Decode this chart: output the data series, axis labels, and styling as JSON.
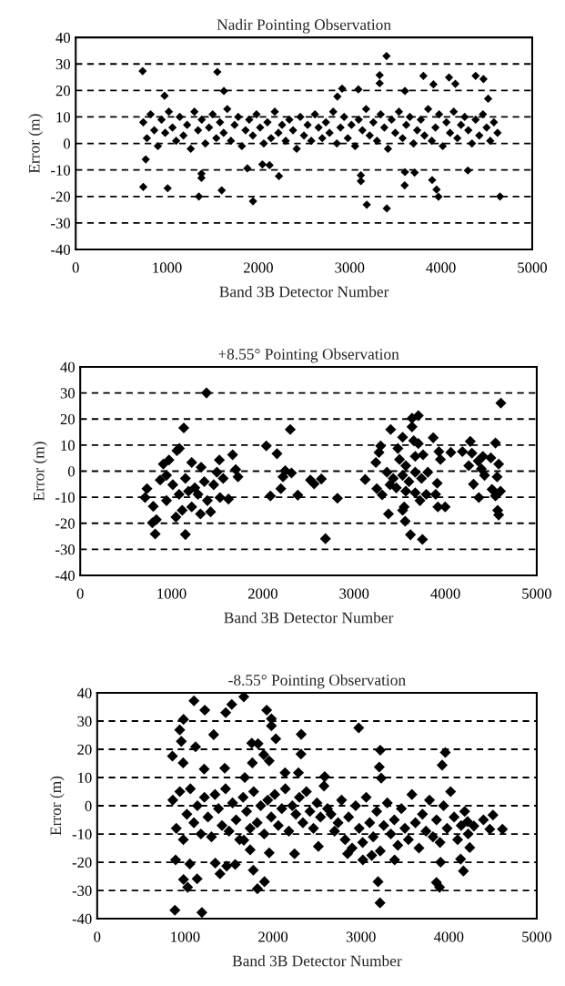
{
  "chart_data": [
    {
      "type": "scatter",
      "title": "Nadir Pointing Observation",
      "xlabel": "Band 3B Detector Number",
      "ylabel": "Error (m)",
      "color": "#000000",
      "marker": "diamond",
      "grid": "y",
      "xlim": [
        0,
        5000
      ],
      "xticks": [
        0,
        1000,
        2000,
        3000,
        4000,
        5000
      ],
      "ylim": [
        -40,
        40
      ],
      "yticks": [
        -40,
        -30,
        -20,
        -10,
        0,
        10,
        20,
        30,
        40
      ],
      "x": [
        740,
        780,
        820,
        860,
        900,
        940,
        980,
        1020,
        1060,
        1100,
        1140,
        1180,
        1220,
        1260,
        1300,
        1340,
        1380,
        1420,
        1460,
        1500,
        1540,
        1580,
        1620,
        1660,
        1700,
        1740,
        1780,
        1820,
        1860,
        1900,
        1940,
        1980,
        2020,
        2060,
        2100,
        2140,
        2180,
        2220,
        2260,
        2300,
        2340,
        2380,
        2420,
        2460,
        2500,
        2540,
        2580,
        2620,
        2660,
        2700,
        2740,
        2780,
        2820,
        2860,
        2900,
        2940,
        2980,
        3020,
        3060,
        3100,
        3140,
        3180,
        3220,
        3260,
        3300,
        3340,
        3380,
        3420,
        3460,
        3500,
        3540,
        3580,
        3620,
        3660,
        3700,
        3740,
        3780,
        3820,
        3860,
        3900,
        3940,
        3980,
        4020,
        4060,
        4100,
        4140,
        4180,
        4220,
        4260,
        4300,
        4340,
        4380,
        4420,
        4460,
        4500,
        4540,
        4580,
        4620,
        733,
        1551,
        3404,
        973,
        1623,
        3329,
        3329,
        3808,
        4089,
        4380,
        4466,
        3918,
        4158,
        2918,
        3096,
        3606,
        4517,
        2866,
        740,
        1007,
        1349,
        1599,
        1942,
        3188,
        3407,
        3973,
        4647,
        3123,
        3123,
        3603,
        1377,
        1377,
        1880,
        2226,
        3904,
        3952,
        4295,
        3606,
        3712,
        2045,
        2123,
        767
      ],
      "values": [
        8,
        2,
        11,
        5,
        -1,
        9,
        4,
        12,
        6,
        1,
        10,
        3,
        7,
        -2,
        12,
        5,
        9,
        0,
        6,
        11,
        2,
        8,
        4,
        13,
        1,
        7,
        10,
        -1,
        5,
        9,
        3,
        11,
        6,
        0,
        8,
        2,
        12,
        4,
        7,
        1,
        9,
        5,
        -2,
        10,
        3,
        7,
        1,
        11,
        6,
        2,
        8,
        4,
        12,
        0,
        6,
        10,
        2,
        7,
        -1,
        9,
        5,
        13,
        3,
        8,
        1,
        11,
        6,
        -2,
        9,
        4,
        12,
        2,
        7,
        10,
        0,
        5,
        9,
        3,
        13,
        1,
        6,
        11,
        -1,
        8,
        4,
        12,
        2,
        7,
        10,
        5,
        0,
        9,
        3,
        11,
        6,
        1,
        8,
        4,
        27.3,
        27,
        33,
        18,
        19.8,
        25.8,
        22.7,
        25.5,
        24.9,
        25.5,
        24.3,
        22.3,
        22.5,
        20.7,
        20.4,
        19.8,
        16.9,
        17.7,
        -16.4,
        -16.9,
        -20,
        -17.7,
        -21.8,
        -23.1,
        -24.5,
        -20.1,
        -20,
        -14.2,
        -12,
        -15.8,
        -11.4,
        -13,
        -9.4,
        -12.3,
        -13.8,
        -17.4,
        -10.2,
        -10.8,
        -11,
        -7.9,
        -8.2,
        -6
      ]
    },
    {
      "type": "scatter",
      "title": "+8.55° Pointing Observation",
      "xlabel": "Band 3B Detector Number",
      "ylabel": "Error (m)",
      "color": "#000000",
      "marker": "diamond",
      "grid": "y",
      "xlim": [
        0,
        5000
      ],
      "xticks": [
        0,
        1000,
        2000,
        3000,
        4000,
        5000
      ],
      "ylim": [
        -40,
        40
      ],
      "yticks": [
        -40,
        -30,
        -20,
        -10,
        0,
        10,
        20,
        30,
        40
      ],
      "x": [
        1383,
        1134,
        1086,
        1059,
        731,
        710,
        800,
        790,
        834,
        821,
        1152,
        1048,
        910,
        972,
        1221,
        1324,
        1524,
        1669,
        1703,
        1728,
        1624,
        1531,
        1428,
        1317,
        1221,
        1117,
        945,
        876,
        1014,
        1152,
        1255,
        1359,
        1462,
        1566,
        1083,
        1290,
        1393,
        1186,
        1497,
        945,
        2038,
        2155,
        2300,
        2245,
        2314,
        2221,
        2197,
        2083,
        2383,
        2521,
        2562,
        2641,
        2817,
        2686,
        3121,
        3238,
        3272,
        3290,
        3248,
        3307,
        3376,
        3400,
        3531,
        3479,
        3634,
        3703,
        3634,
        3652,
        3703,
        3866,
        3928,
        3945,
        4059,
        3497,
        3566,
        3669,
        3755,
        3359,
        3428,
        3531,
        3600,
        3669,
        3738,
        3807,
        3462,
        3566,
        3669,
        3721,
        3548,
        3531,
        3559,
        3617,
        3748,
        3790,
        3893,
        3910,
        3917,
        3997,
        3393,
        4186,
        4272,
        4290,
        4255,
        4359,
        4410,
        4497,
        4548,
        4583,
        4393,
        4428,
        4566,
        4307,
        4366,
        4510,
        4603,
        4548,
        4572,
        4583,
        4607
      ],
      "values": [
        30,
        16.6,
        8.7,
        7.9,
        -6.7,
        -10.1,
        -13.5,
        -19.8,
        -18.6,
        -24.1,
        -24.3,
        -17.6,
        2.7,
        4.3,
        3.3,
        1.5,
        4.3,
        6.3,
        0.6,
        -2.2,
        -10.7,
        -10.1,
        -15.6,
        -16.4,
        -13.7,
        -15,
        -11.3,
        -3.4,
        -5.2,
        -2.8,
        -6.4,
        -4,
        -5.2,
        -2.8,
        -8.9,
        -8.9,
        -11.3,
        -7.7,
        -0.4,
        -1.6,
        9.7,
        6.7,
        16,
        0.2,
        -0.7,
        -2.2,
        -6.7,
        -9.5,
        -9.2,
        -3.4,
        -4.9,
        -3,
        -10.4,
        -25.9,
        -3.2,
        3.3,
        7.2,
        9.7,
        -6.7,
        -9.1,
        -16.4,
        16,
        13,
        8.7,
        20.3,
        21.3,
        17,
        11.7,
        10.6,
        12.8,
        7.5,
        4.5,
        7.2,
        4.5,
        2.1,
        5.7,
        6.3,
        -0.4,
        -2.8,
        -1.6,
        -4,
        -0.4,
        -2.8,
        -0.4,
        -6.4,
        -7.7,
        -8.3,
        -11.3,
        -13.7,
        -15,
        -19.2,
        -24.4,
        -26.2,
        -8.9,
        -8.9,
        -4.6,
        -13.7,
        -13.7,
        -5.2,
        7.5,
        11.4,
        6.9,
        2.1,
        3.9,
        5.7,
        5.1,
        10.8,
        2.7,
        0.9,
        -1.6,
        -2.2,
        -5,
        -10.1,
        -7,
        -7.7,
        -9.5,
        -15,
        -16.8,
        26.1
      ]
    },
    {
      "type": "scatter",
      "title": "-8.55° Pointing Observation",
      "xlabel": "Band 3B Detector Number",
      "ylabel": "Error (m)",
      "color": "#000000",
      "marker": "diamond",
      "grid": "y",
      "xlim": [
        0,
        5000
      ],
      "xticks": [
        0,
        1000,
        2000,
        3000,
        4000,
        5000
      ],
      "ylim": [
        -40,
        40
      ],
      "yticks": [
        -40,
        -30,
        -20,
        -10,
        0,
        10,
        20,
        30,
        40
      ],
      "x": [
        860,
        900,
        940,
        980,
        1020,
        1060,
        1100,
        1140,
        1180,
        1220,
        1260,
        1300,
        1340,
        1380,
        1420,
        1460,
        1500,
        1540,
        1580,
        1620,
        1660,
        1700,
        1740,
        1780,
        1820,
        1860,
        1900,
        1940,
        1980,
        2020,
        2060,
        2100,
        2140,
        2180,
        2220,
        2260,
        2300,
        2340,
        2380,
        2420,
        2460,
        2500,
        2540,
        2580,
        2620,
        2660,
        2700,
        2740,
        2780,
        2820,
        2860,
        2900,
        2940,
        2980,
        3020,
        3060,
        3100,
        3140,
        3180,
        3220,
        3260,
        3300,
        3340,
        3380,
        3420,
        3460,
        3500,
        3540,
        3580,
        3620,
        3660,
        3700,
        3740,
        3780,
        3820,
        3860,
        3900,
        3940,
        3980,
        4020,
        4060,
        4100,
        4140,
        4180,
        4220,
        4394,
        4502,
        4610,
        4466,
        4285,
        4213,
        884,
        1191,
        1101,
        1668,
        1224,
        1531,
        1462,
        982,
        939,
        957,
        856,
        1119,
        1325,
        1928,
        1982,
        1982,
        2032,
        1758,
        1830,
        2321,
        2318,
        2975,
        3220,
        3209,
        3231,
        3960,
        3924,
        1895,
        1957,
        1765,
        978,
        1217,
        1451,
        2137,
        2289,
        2588,
        1679,
        3217,
        3195,
        3859,
        3895,
        1823,
        1903,
        982,
        1029,
        1137,
        1776,
        4166,
        892,
        1054,
        1397,
        1473,
        1570,
        1343,
        3906,
        4134,
        3383,
        3123,
        3022,
        2848,
        2516,
        2245,
        1740,
        1668,
        1957,
        4238
      ],
      "values": [
        2,
        -8,
        5,
        -12,
        -3,
        6,
        -6,
        0,
        -10,
        3,
        -4,
        -11,
        4,
        -1,
        -7,
        6,
        -9,
        1,
        -5,
        -12,
        3,
        -2,
        -8,
        5,
        -6,
        0,
        -10,
        2,
        -4,
        4,
        -7,
        -1,
        6,
        -9,
        0,
        -3,
        3,
        -6,
        5,
        -2,
        -8,
        1,
        -4,
        7,
        -1,
        -3,
        -9,
        -6,
        2,
        -12,
        -4,
        -15,
        0,
        -8,
        -13,
        3,
        -6,
        -11,
        -2,
        -16,
        -7,
        1,
        -10,
        -5,
        -14,
        -1,
        -8,
        -12,
        4,
        -6,
        -15,
        -3,
        -9,
        2,
        -11,
        -5,
        -13,
        0,
        -8,
        5,
        -4,
        -12,
        -7,
        -2,
        -10,
        -5,
        -3.3,
        -8.3,
        -8.3,
        -7.2,
        -5.6,
        -37,
        -37.8,
        37.2,
        38.6,
        33.9,
        35.9,
        33,
        30.6,
        26.9,
        22.8,
        17.6,
        20.9,
        25.2,
        33.9,
        30.8,
        28.3,
        23.7,
        22.2,
        22,
        25.3,
        18.3,
        27.6,
        19.7,
        13.7,
        9.8,
        18.9,
        14.4,
        18.1,
        15.9,
        15.2,
        15.2,
        13,
        13.3,
        11.7,
        11.7,
        10.3,
        10,
        -34.4,
        -26.9,
        -27.2,
        -28.9,
        -29.4,
        -26.9,
        -26.1,
        -28.9,
        -25.9,
        -22.8,
        -23.1,
        -19.2,
        -20.6,
        -24.1,
        -21.4,
        -20.8,
        -20.3,
        -20,
        -18.9,
        -19.2,
        -17.6,
        -19.2,
        -17,
        -14.4,
        -17,
        -15.6,
        -12.2,
        -16.7,
        -14.8
      ]
    }
  ]
}
